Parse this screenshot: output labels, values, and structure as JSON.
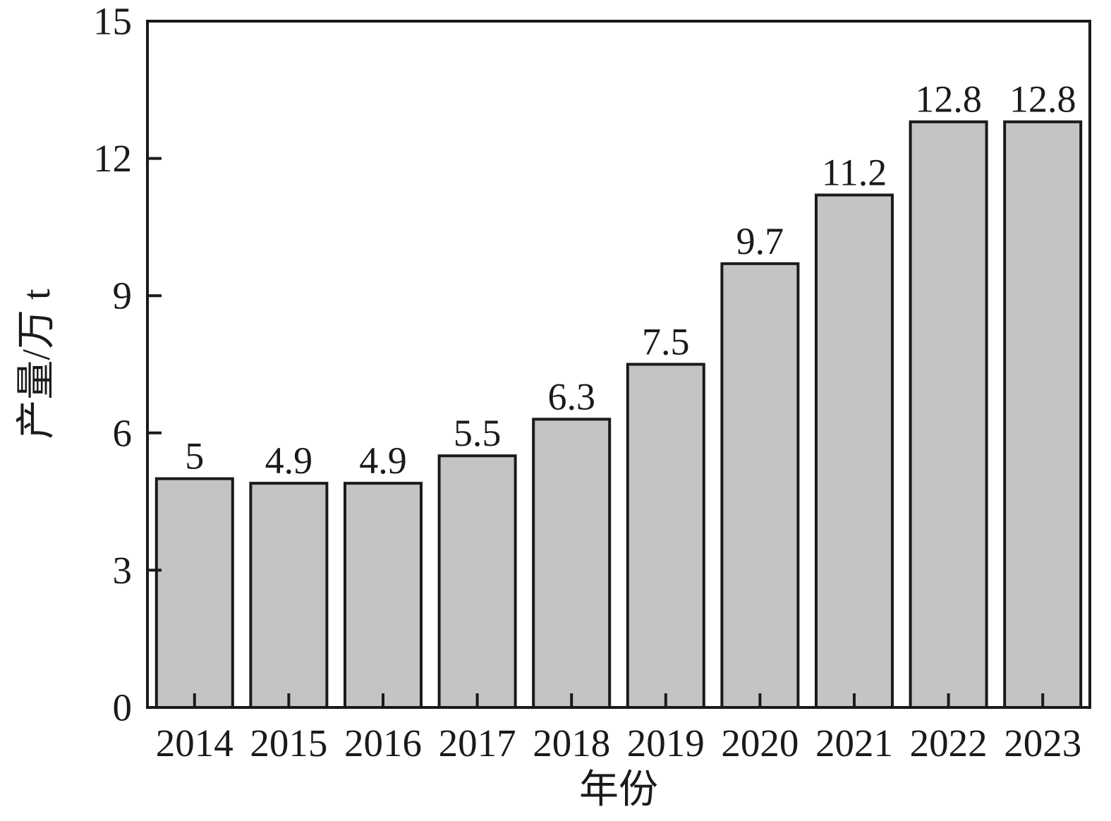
{
  "chart_data": {
    "type": "bar",
    "categories": [
      "2014",
      "2015",
      "2016",
      "2017",
      "2018",
      "2019",
      "2020",
      "2021",
      "2022",
      "2023"
    ],
    "values": [
      5,
      4.9,
      4.9,
      5.5,
      6.3,
      7.5,
      9.7,
      11.2,
      12.8,
      12.8
    ],
    "value_labels": [
      "5",
      "4.9",
      "4.9",
      "5.5",
      "6.3",
      "7.5",
      "9.7",
      "11.2",
      "12.8",
      "12.8"
    ],
    "title": "",
    "xlabel": "年份",
    "ylabel": "产量/万 t",
    "ylim": [
      0,
      15
    ],
    "yticks": [
      0,
      3,
      6,
      9,
      12,
      15
    ],
    "grid": false,
    "legend_position": "none",
    "colors": {
      "bar_fill": "#c4c4c4",
      "bar_edge": "#1a1a1a",
      "axis": "#1a1a1a",
      "text": "#1a1a1a",
      "background": "#ffffff"
    }
  }
}
